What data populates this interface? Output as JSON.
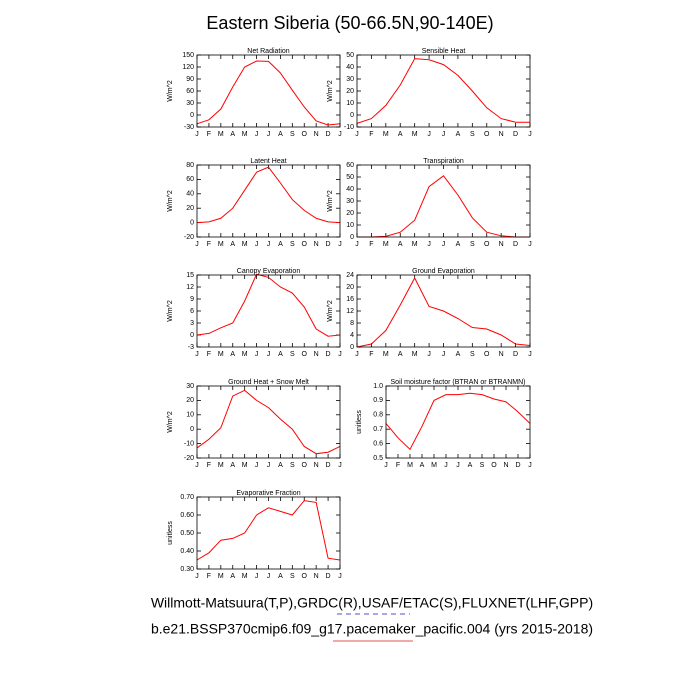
{
  "title": "Eastern Siberia (50-66.5N,90-140E)",
  "footnotes": [
    "Willmott-Matsuura(T,P),GRDC(R),USAF/ETAC(S),FLUXNET(LHF,GPP)",
    "b.e21.BSSP370cmip6.f09_g17.pacemaker_pacific.004 (yrs 2015-2018)"
  ],
  "chart_data": [
    {
      "type": "line",
      "title": "Net Radiation",
      "ylabel": "W/m^2",
      "categories": [
        "J",
        "F",
        "M",
        "A",
        "M",
        "J",
        "J",
        "A",
        "S",
        "O",
        "N",
        "D",
        "J"
      ],
      "values": [
        -22,
        -12,
        15,
        70,
        120,
        135,
        134,
        105,
        62,
        20,
        -15,
        -25,
        -22
      ],
      "color": "#ff0000",
      "ylim": [
        -30,
        150
      ],
      "yticks": [
        -30,
        0,
        30,
        60,
        90,
        120,
        150
      ]
    },
    {
      "type": "line",
      "title": "Sensible Heat",
      "ylabel": "W/m^2",
      "categories": [
        "J",
        "F",
        "M",
        "A",
        "M",
        "J",
        "J",
        "A",
        "S",
        "O",
        "N",
        "D",
        "J"
      ],
      "values": [
        -7,
        -3,
        8,
        25,
        47,
        46,
        42,
        33,
        20,
        6,
        -3,
        -6,
        -6
      ],
      "color": "#ff0000",
      "ylim": [
        -10,
        50
      ],
      "yticks": [
        -10,
        0,
        10,
        20,
        30,
        40,
        50
      ]
    },
    {
      "type": "line",
      "title": "Latent Heat",
      "ylabel": "W/m^2",
      "categories": [
        "J",
        "F",
        "M",
        "A",
        "M",
        "J",
        "J",
        "A",
        "S",
        "O",
        "N",
        "D",
        "J"
      ],
      "values": [
        0,
        1,
        6,
        20,
        45,
        70,
        77,
        55,
        32,
        17,
        6,
        1,
        0
      ],
      "color": "#ff0000",
      "ylim": [
        -20,
        80
      ],
      "yticks": [
        -20,
        0,
        20,
        40,
        60,
        80
      ]
    },
    {
      "type": "line",
      "title": "Transpiration",
      "ylabel": "W/m^2",
      "categories": [
        "J",
        "F",
        "M",
        "A",
        "M",
        "J",
        "J",
        "A",
        "S",
        "O",
        "N",
        "D",
        "J"
      ],
      "values": [
        0,
        0,
        0.5,
        4,
        14,
        42,
        51,
        35,
        16,
        4,
        1,
        0,
        0
      ],
      "color": "#ff0000",
      "ylim": [
        0,
        60
      ],
      "yticks": [
        0,
        10,
        20,
        30,
        40,
        50,
        60
      ]
    },
    {
      "type": "line",
      "title": "Canopy Evaporation",
      "ylabel": "W/m^2",
      "categories": [
        "J",
        "F",
        "M",
        "A",
        "M",
        "J",
        "J",
        "A",
        "S",
        "O",
        "N",
        "D",
        "J"
      ],
      "values": [
        0,
        0.4,
        1.8,
        3,
        8.5,
        15.2,
        14.4,
        12,
        10.5,
        7,
        1.5,
        -0.3,
        0
      ],
      "color": "#ff0000",
      "ylim": [
        -3,
        15
      ],
      "yticks": [
        -3,
        0,
        3,
        6,
        9,
        12,
        15
      ]
    },
    {
      "type": "line",
      "title": "Ground Evaporation",
      "ylabel": "W/m^2",
      "categories": [
        "J",
        "F",
        "M",
        "A",
        "M",
        "J",
        "J",
        "A",
        "S",
        "O",
        "N",
        "D",
        "J"
      ],
      "values": [
        0,
        1,
        5.5,
        14,
        23,
        13.5,
        12,
        9.5,
        6.5,
        6,
        4,
        1,
        0.5
      ],
      "color": "#ff0000",
      "ylim": [
        0,
        24
      ],
      "yticks": [
        0,
        4,
        8,
        12,
        16,
        20,
        24
      ]
    },
    {
      "type": "line",
      "title": "Ground Heat + Snow Melt",
      "ylabel": "W/m^2",
      "categories": [
        "J",
        "F",
        "M",
        "A",
        "M",
        "J",
        "J",
        "A",
        "S",
        "O",
        "N",
        "D",
        "J"
      ],
      "values": [
        -13,
        -7,
        1,
        23,
        27,
        20,
        15,
        7,
        0,
        -12,
        -17,
        -16,
        -12
      ],
      "color": "#ff0000",
      "ylim": [
        -20,
        30
      ],
      "yticks": [
        -20,
        -10,
        0,
        10,
        20,
        30
      ]
    },
    {
      "type": "line",
      "title": "Soil moisture factor (BTRAN or BTRANMN)",
      "ylabel": "unitless",
      "categories": [
        "J",
        "F",
        "M",
        "A",
        "M",
        "J",
        "J",
        "A",
        "S",
        "O",
        "N",
        "D",
        "J"
      ],
      "values": [
        0.74,
        0.64,
        0.56,
        0.72,
        0.9,
        0.94,
        0.94,
        0.95,
        0.94,
        0.91,
        0.89,
        0.82,
        0.74
      ],
      "color": "#ff0000",
      "ylim": [
        0.5,
        1
      ],
      "yticks": [
        0.5,
        0.6,
        0.7,
        0.8,
        0.9,
        {
          "value": 1,
          "label": "1.0"
        }
      ]
    },
    {
      "type": "line",
      "title": "Evaporative Fraction",
      "ylabel": "unitless",
      "categories": [
        "J",
        "F",
        "M",
        "A",
        "M",
        "J",
        "J",
        "A",
        "S",
        "O",
        "N",
        "D",
        "J"
      ],
      "values": [
        0.35,
        0.39,
        0.46,
        0.47,
        0.5,
        0.6,
        0.64,
        0.62,
        0.6,
        0.68,
        0.67,
        0.36,
        0.35
      ],
      "color": "#ff0000",
      "ylim": [
        0.3,
        0.7
      ],
      "yticks": [
        {
          "value": 0.3,
          "label": "0.30"
        },
        {
          "value": 0.4,
          "label": "0.40"
        },
        {
          "value": 0.5,
          "label": "0.50"
        },
        {
          "value": 0.6,
          "label": "0.60"
        },
        {
          "value": 0.7,
          "label": "0.70"
        }
      ]
    }
  ]
}
